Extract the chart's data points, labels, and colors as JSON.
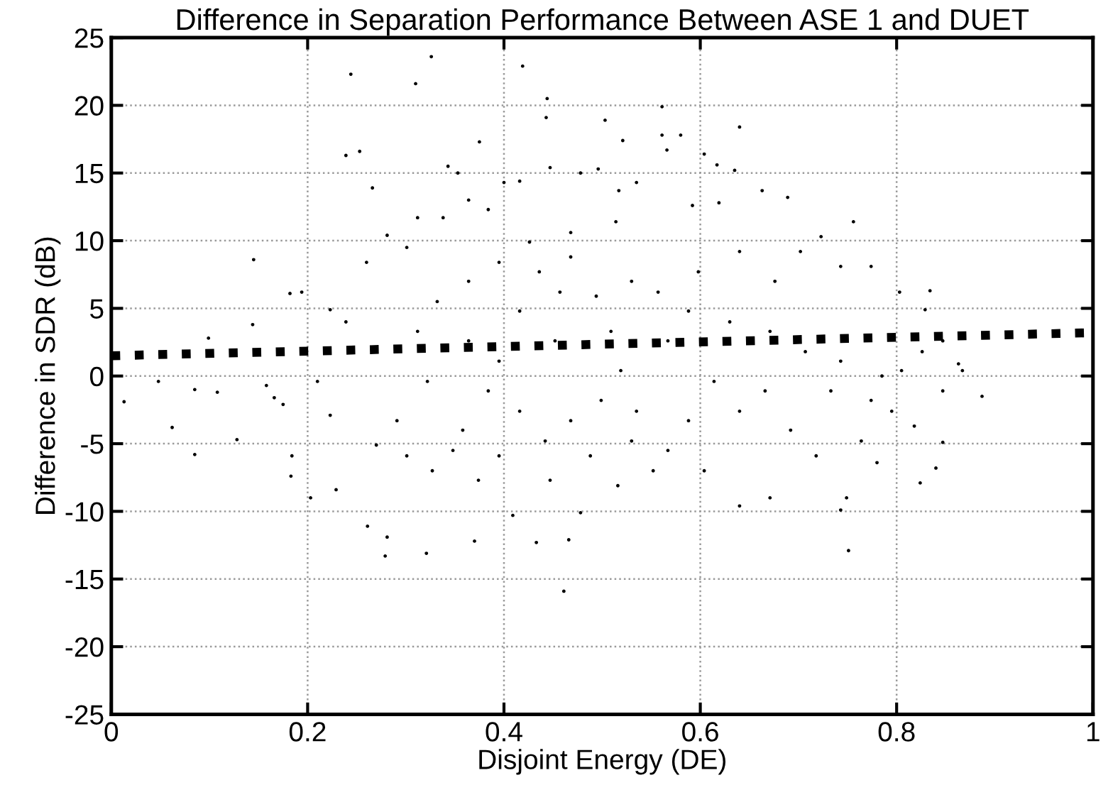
{
  "chart_data": {
    "type": "scatter",
    "title": "Difference in Separation Performance Between ASE 1 and DUET",
    "xlabel": "Disjoint Energy (DE)",
    "ylabel": "Difference in SDR (dB)",
    "xlim": [
      0,
      1
    ],
    "ylim": [
      -25,
      25
    ],
    "xticks": [
      0,
      0.2,
      0.4,
      0.6,
      0.8,
      1
    ],
    "yticks": [
      -25,
      -20,
      -15,
      -10,
      -5,
      0,
      5,
      10,
      15,
      20,
      25
    ],
    "grid": true,
    "series": [
      {
        "color": "#000000",
        "marker": "circle",
        "x": [
          0.326,
          0.244,
          0.31,
          0.419,
          0.444,
          0.443,
          0.503,
          0.521,
          0.375,
          0.239,
          0.253,
          0.266,
          0.145,
          0.144,
          0.099,
          0.048,
          0.013,
          0.085,
          0.062,
          0.108,
          0.128,
          0.085,
          0.182,
          0.194,
          0.184,
          0.183,
          0.203,
          0.229,
          0.261,
          0.279,
          0.281,
          0.321,
          0.37,
          0.433,
          0.466,
          0.461,
          0.409,
          0.478,
          0.516,
          0.158,
          0.166,
          0.175,
          0.223,
          0.239,
          0.21,
          0.223,
          0.26,
          0.281,
          0.301,
          0.312,
          0.338,
          0.353,
          0.343,
          0.364,
          0.384,
          0.4,
          0.416,
          0.447,
          0.478,
          0.496,
          0.517,
          0.535,
          0.312,
          0.322,
          0.291,
          0.27,
          0.301,
          0.327,
          0.348,
          0.358,
          0.384,
          0.395,
          0.416,
          0.436,
          0.457,
          0.468,
          0.494,
          0.509,
          0.519,
          0.499,
          0.468,
          0.442,
          0.416,
          0.395,
          0.374,
          0.447,
          0.488,
          0.53,
          0.535,
          0.53,
          0.364,
          0.332,
          0.395,
          0.426,
          0.468,
          0.514,
          0.452,
          0.364,
          0.561,
          0.561,
          0.58,
          0.566,
          0.64,
          0.604,
          0.617,
          0.635,
          0.592,
          0.619,
          0.663,
          0.689,
          0.756,
          0.723,
          0.702,
          0.743,
          0.774,
          0.803,
          0.834,
          0.829,
          0.847,
          0.863,
          0.887,
          0.867,
          0.847,
          0.818,
          0.847,
          0.84,
          0.824,
          0.78,
          0.749,
          0.751,
          0.743,
          0.671,
          0.64,
          0.604,
          0.552,
          0.567,
          0.588,
          0.64,
          0.692,
          0.718,
          0.764,
          0.795,
          0.785,
          0.743,
          0.707,
          0.671,
          0.63,
          0.588,
          0.557,
          0.598,
          0.64,
          0.676,
          0.567,
          0.614,
          0.666,
          0.733,
          0.774,
          0.805,
          0.826
        ],
        "values": [
          23.6,
          22.3,
          21.6,
          22.9,
          20.5,
          19.1,
          18.9,
          17.4,
          17.3,
          16.3,
          16.6,
          13.9,
          8.6,
          3.8,
          2.8,
          -0.4,
          -1.9,
          -1.0,
          -3.8,
          -1.2,
          -4.7,
          -5.8,
          6.1,
          6.2,
          -5.9,
          -7.4,
          -9.0,
          -8.4,
          -11.1,
          -13.3,
          -11.9,
          -13.1,
          -12.2,
          -12.3,
          -12.1,
          -15.9,
          -10.3,
          -10.1,
          -8.1,
          -0.7,
          -1.6,
          -2.1,
          4.9,
          4.0,
          -0.4,
          -2.9,
          8.4,
          10.4,
          9.5,
          11.7,
          11.7,
          15.0,
          15.5,
          13.0,
          12.3,
          14.3,
          14.4,
          15.4,
          15.0,
          15.3,
          13.7,
          14.3,
          3.3,
          -0.4,
          -3.3,
          -5.1,
          -5.9,
          -7.0,
          -5.5,
          -4.0,
          -1.1,
          1.1,
          4.8,
          7.7,
          6.2,
          8.8,
          5.9,
          3.3,
          0.4,
          -1.8,
          -3.3,
          -4.8,
          -2.6,
          -5.9,
          -7.7,
          -7.7,
          -5.9,
          -4.8,
          -2.6,
          7.0,
          7.0,
          5.5,
          8.4,
          9.9,
          10.6,
          11.4,
          2.6,
          2.6,
          19.9,
          17.8,
          17.8,
          16.7,
          18.4,
          16.4,
          15.6,
          15.2,
          12.6,
          12.8,
          13.7,
          13.2,
          11.4,
          10.3,
          9.2,
          8.1,
          8.1,
          6.2,
          6.3,
          4.9,
          2.6,
          0.9,
          -1.5,
          0.4,
          -1.1,
          -3.7,
          -4.9,
          -6.8,
          -7.9,
          -6.4,
          -9.0,
          -12.9,
          -9.9,
          -9.0,
          -9.6,
          -7.0,
          -7.0,
          -5.5,
          -3.3,
          -2.6,
          -4.0,
          -5.9,
          -4.8,
          -2.6,
          0.0,
          1.1,
          1.8,
          3.3,
          4.0,
          4.8,
          6.2,
          7.7,
          9.2,
          7.0,
          2.6,
          -0.4,
          -1.1,
          -1.1,
          -1.8,
          0.4,
          1.8
        ]
      },
      {
        "type": "line",
        "color": "#000000",
        "line_style": "dotted",
        "marker": "none",
        "x": [
          0,
          1
        ],
        "values": [
          1.5,
          3.2
        ]
      }
    ]
  }
}
